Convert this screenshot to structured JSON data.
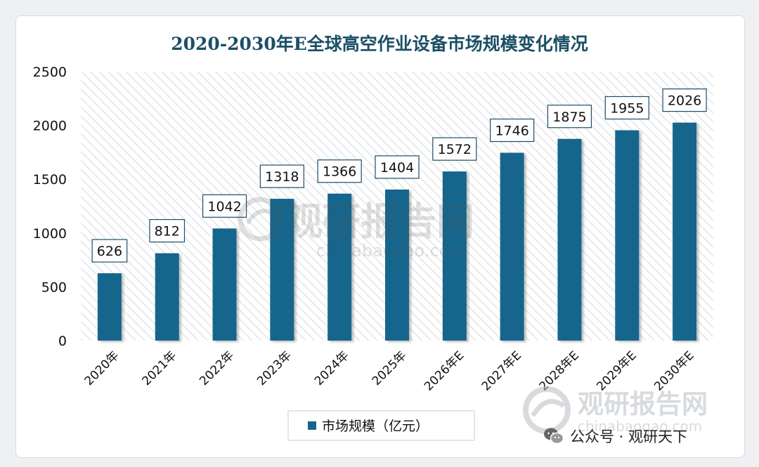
{
  "chart_data": {
    "type": "bar",
    "title": "2020-2030年E全球高空作业设备市场规模变化情况",
    "categories": [
      "2020年",
      "2021年",
      "2022年",
      "2023年",
      "2024年",
      "2025年",
      "2026年E",
      "2027年E",
      "2028年E",
      "2029年E",
      "2030年E"
    ],
    "series": [
      {
        "name": "市场规模（亿元）",
        "values": [
          626,
          812,
          1042,
          1318,
          1366,
          1404,
          1572,
          1746,
          1875,
          1955,
          2026
        ]
      }
    ],
    "data_labels": [
      "626",
      "812",
      "1042",
      "1318",
      "1366",
      "1404",
      "1572",
      "1746",
      "1875",
      "1955",
      "2026"
    ],
    "yticks": [
      "0",
      "500",
      "1000",
      "1500",
      "2000",
      "2500"
    ],
    "ylim": [
      0,
      2500
    ],
    "legend_position": "bottom",
    "grid": false
  },
  "colors": {
    "bar": "#17658c",
    "title": "#1b4f66",
    "hatch": "#e4e6e9"
  },
  "watermark": {
    "center_cn": "观研报告网",
    "center_en": "chinabaogao.com",
    "corner_cn": "观研报告网",
    "corner_en": "chinabaogao.com"
  },
  "footer": {
    "icon": "wechat-icon",
    "text": "公众号 · 观研天下"
  }
}
